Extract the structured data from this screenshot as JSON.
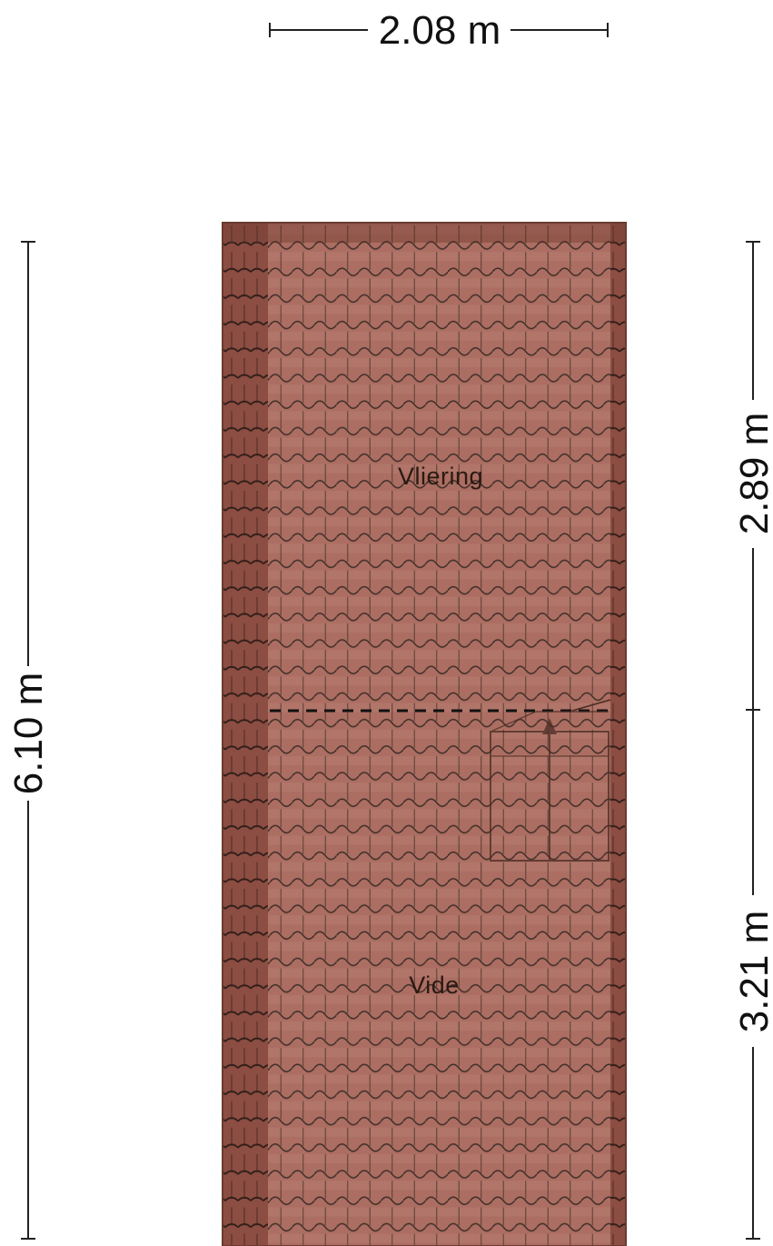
{
  "dimensions": {
    "width_top": "2.08 m",
    "height_left": "6.10 m",
    "right_upper": "2.89 m",
    "right_lower": "3.21 m"
  },
  "rooms": {
    "upper_label": "Vliering",
    "lower_label": "Vide"
  },
  "colors": {
    "roof_tile": "#a8675a",
    "roof_edge": "#6b3a30",
    "tile_line": "#3a2620",
    "dimension_line": "#222222",
    "background": "#ffffff"
  },
  "features": {
    "dashed_divider": "floor-opening boundary between Vliering and Vide",
    "stair_hatch": "stair opening with up arrow"
  }
}
